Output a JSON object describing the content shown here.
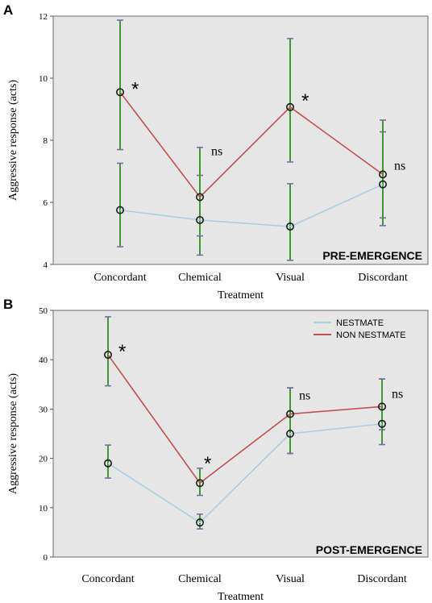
{
  "chart_data": [
    {
      "panel": "A",
      "type": "line",
      "badge": "PRE-EMERGENCE",
      "xlabel": "Treatment",
      "ylabel": "Aggressive response (acts)",
      "categories": [
        "Concordant",
        "Chemical",
        "Visual",
        "Discordant"
      ],
      "ylim": [
        4,
        12
      ],
      "yticks": [
        4,
        6,
        8,
        10,
        12
      ],
      "grid": false,
      "series": [
        {
          "name": "NESTMATE",
          "color": "#a9cfe0",
          "values": [
            5.75,
            5.43,
            5.22,
            6.58
          ],
          "err_low": [
            4.57,
            4.3,
            4.13,
            5.5
          ],
          "err_high": [
            7.26,
            6.87,
            6.6,
            8.27
          ]
        },
        {
          "name": "NON NESTMATE",
          "color": "#c0504d",
          "values": [
            9.55,
            6.17,
            9.07,
            6.9
          ],
          "err_low": [
            7.7,
            4.92,
            7.3,
            5.25
          ],
          "err_high": [
            11.87,
            7.77,
            11.28,
            8.65
          ]
        }
      ],
      "annotations": [
        "*",
        "ns",
        "*",
        "ns"
      ]
    },
    {
      "panel": "B",
      "type": "line",
      "badge": "POST-EMERGENCE",
      "xlabel": "Treatment",
      "ylabel": "Aggressive response (acts)",
      "categories": [
        "Concordant",
        "Chemical",
        "Visual",
        "Discordant"
      ],
      "ylim": [
        0,
        50
      ],
      "yticks": [
        0,
        10,
        20,
        30,
        40,
        50
      ],
      "grid": false,
      "legend_position": "top-right",
      "series": [
        {
          "name": "NESTMATE",
          "color": "#a9cfe0",
          "values": [
            19,
            7,
            25,
            27
          ],
          "err_low": [
            16,
            5.7,
            21,
            22.8
          ],
          "err_high": [
            22.7,
            8.7,
            34.3,
            36.1
          ]
        },
        {
          "name": "NON NESTMATE",
          "color": "#c0504d",
          "values": [
            41,
            15,
            29,
            30.5
          ],
          "err_low": [
            34.7,
            12.5,
            21,
            25.8
          ],
          "err_high": [
            48.7,
            18,
            34.3,
            36.1
          ]
        }
      ],
      "annotations": [
        "*",
        "*",
        "ns",
        "ns"
      ]
    }
  ],
  "colors": {
    "plot_background": "#e6e6e6",
    "error_bar": "#3c9a2e",
    "error_cap": "#7a6aa8",
    "marker_edge": "#1a1a1a"
  }
}
